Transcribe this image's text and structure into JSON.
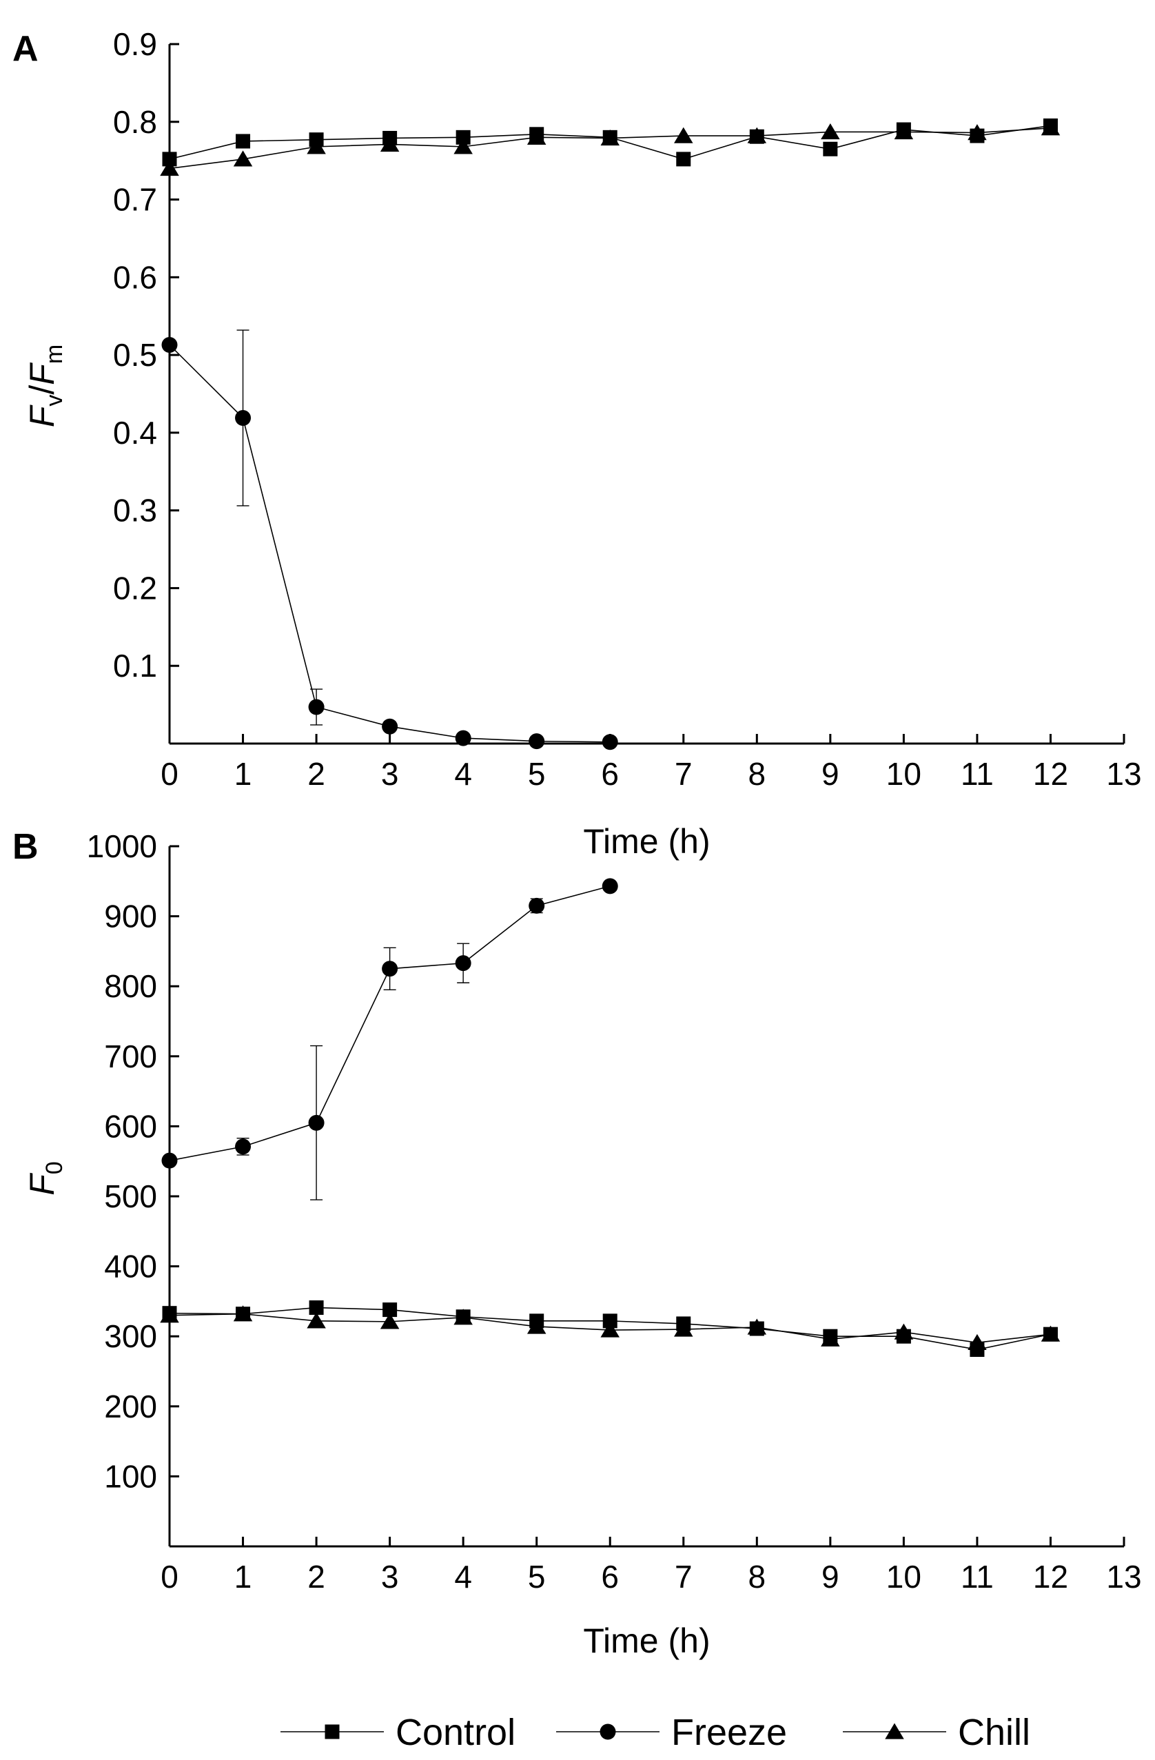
{
  "legend": {
    "entries": [
      {
        "label": "Control",
        "marker": "square"
      },
      {
        "label": "Freeze",
        "marker": "circle"
      },
      {
        "label": "Chill",
        "marker": "triangle"
      }
    ]
  },
  "colors": {
    "ink": "#000000",
    "background": "#ffffff"
  },
  "chart_data": [
    {
      "panel": "A",
      "type": "line",
      "title": "",
      "xlabel": "Time (h)",
      "ylabel": {
        "main": "F",
        "sub1": "v",
        "sep": "/",
        "main2": "F",
        "sub2": "m"
      },
      "xlim": [
        0,
        13
      ],
      "ylim": [
        0,
        0.9
      ],
      "xticks": [
        "0",
        "1",
        "2",
        "3",
        "4",
        "5",
        "6",
        "7",
        "8",
        "9",
        "10",
        "11",
        "12",
        "13"
      ],
      "yticks": [
        "0.1",
        "0.2",
        "0.3",
        "0.4",
        "0.5",
        "0.6",
        "0.7",
        "0.8",
        "0.9"
      ],
      "grid": false,
      "series": [
        {
          "name": "Control",
          "marker": "square",
          "x": [
            0,
            1,
            2,
            3,
            4,
            5,
            6,
            7,
            8,
            9,
            10,
            11,
            12
          ],
          "y": [
            0.752,
            0.775,
            0.777,
            0.779,
            0.78,
            0.784,
            0.78,
            0.752,
            0.781,
            0.765,
            0.79,
            0.782,
            0.795
          ]
        },
        {
          "name": "Freeze",
          "marker": "circle",
          "x": [
            0,
            1,
            2,
            3,
            4,
            5,
            6
          ],
          "y": [
            0.513,
            0.419,
            0.047,
            0.022,
            0.007,
            0.003,
            0.002
          ],
          "error": [
            0,
            0.113,
            0.023,
            0,
            0,
            0,
            0
          ]
        },
        {
          "name": "Chill",
          "marker": "triangle",
          "x": [
            0,
            1,
            2,
            3,
            4,
            5,
            6,
            7,
            8,
            9,
            10,
            11,
            12
          ],
          "y": [
            0.74,
            0.752,
            0.768,
            0.771,
            0.768,
            0.78,
            0.779,
            0.782,
            0.782,
            0.787,
            0.787,
            0.786,
            0.792
          ]
        }
      ]
    },
    {
      "panel": "B",
      "type": "line",
      "title": "",
      "xlabel": "Time (h)",
      "ylabel": {
        "main": "F",
        "sub1": "0"
      },
      "xlim": [
        0,
        13
      ],
      "ylim": [
        0,
        1000
      ],
      "xticks": [
        "0",
        "1",
        "2",
        "3",
        "4",
        "5",
        "6",
        "7",
        "8",
        "9",
        "10",
        "11",
        "12",
        "13"
      ],
      "yticks": [
        "100",
        "200",
        "300",
        "400",
        "500",
        "600",
        "700",
        "800",
        "900",
        "1000"
      ],
      "grid": false,
      "series": [
        {
          "name": "Control",
          "marker": "square",
          "x": [
            0,
            1,
            2,
            3,
            4,
            5,
            6,
            7,
            8,
            9,
            10,
            11,
            12
          ],
          "y": [
            333,
            332,
            341,
            338,
            328,
            322,
            322,
            318,
            311,
            300,
            300,
            281,
            303
          ]
        },
        {
          "name": "Freeze",
          "marker": "circle",
          "x": [
            0,
            1,
            2,
            3,
            4,
            5,
            6
          ],
          "y": [
            551,
            571,
            605,
            825,
            833,
            915,
            943
          ],
          "error": [
            0,
            12,
            110,
            30,
            28,
            10,
            0
          ]
        },
        {
          "name": "Chill",
          "marker": "triangle",
          "x": [
            0,
            1,
            2,
            3,
            4,
            5,
            6,
            7,
            8,
            9,
            10,
            11,
            12
          ],
          "y": [
            330,
            332,
            322,
            321,
            327,
            314,
            309,
            310,
            313,
            296,
            306,
            291,
            303
          ]
        }
      ]
    }
  ]
}
